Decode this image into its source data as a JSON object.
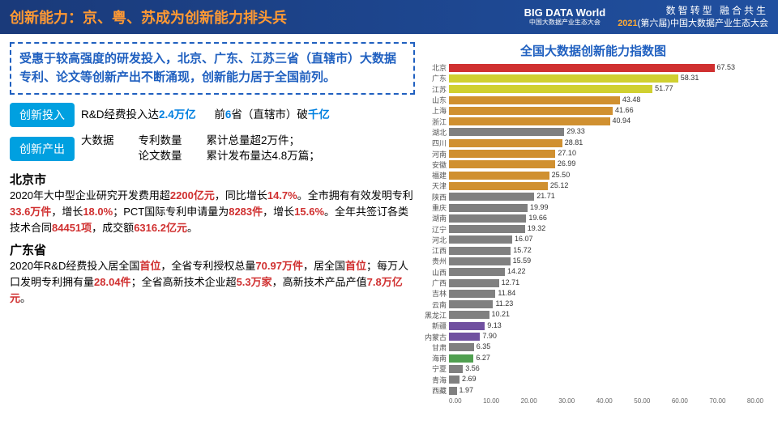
{
  "header": {
    "title": "创新能力：京、粤、苏成为创新能力排头兵",
    "logo_big": "BIG DATA World",
    "logo_small": "中国大数据产业生态大会",
    "tagline1": "数智转型 融合共生",
    "tagline2_year": "2021",
    "tagline2_rest": "(第六届)中国大数据产业生态大会"
  },
  "summary": "受惠于较高强度的研发投入，北京、广东、江苏三省（直辖市）大数据专利、论文等创新产出不断涌现，创新能力居于全国前列。",
  "badge1": "创新投入",
  "row1_p1": "R&D经费投入达",
  "row1_v1": "2.4万亿",
  "row1_p2": "前",
  "row1_v2": "6",
  "row1_p3": "省（直辖市）破",
  "row1_v3": "千亿",
  "badge2": "创新产出",
  "row2_label": "大数据",
  "row2_a": "专利数量",
  "row2_b": "论文数量",
  "row2_c": "累计总量超2万件；",
  "row2_d": "累计发布量达4.8万篇；",
  "bj_title": "北京市",
  "bj": {
    "p1": "2020年大中型企业研究开发费用超",
    "v1": "2200亿元",
    "p2": "，同比增长",
    "v2": "14.7%",
    "p3": "。全市拥有有效发明专利",
    "v3": "33.6万件",
    "p4": "，增长",
    "v4": "18.0%",
    "p5": "；PCT国际专利申请量为",
    "v5": "8283件",
    "p6": "，增长",
    "v6": "15.6%",
    "p7": "。全年共签订各类技术合同",
    "v7": "84451项",
    "p8": "，成交额",
    "v8": "6316.2亿元",
    "p9": "。"
  },
  "gd_title": "广东省",
  "gd": {
    "p1": "2020年R&D经费投入居全国",
    "v1": "首位",
    "p2": "，全省专利授权总量",
    "v2": "70.97万件",
    "p3": "，居全国",
    "v3": "首位",
    "p4": "；每万人口发明专利拥有量",
    "v4": "28.04件",
    "p5": "；全省高新技术企业超",
    "v5": "5.3万家",
    "p6": "，高新技术产品产值",
    "v6": "7.8万亿元",
    "p7": "。"
  },
  "chart": {
    "title": "全国大数据创新能力指数图",
    "max": 80,
    "xticks": [
      "0.00",
      "10.00",
      "20.00",
      "30.00",
      "40.00",
      "50.00",
      "60.00",
      "70.00",
      "80.00"
    ],
    "bars": [
      {
        "label": "北京",
        "value": 67.53,
        "color": "#d03030"
      },
      {
        "label": "广东",
        "value": 58.31,
        "color": "#d0d030"
      },
      {
        "label": "江苏",
        "value": 51.77,
        "color": "#d0d030"
      },
      {
        "label": "山东",
        "value": 43.48,
        "color": "#d09030"
      },
      {
        "label": "上海",
        "value": 41.66,
        "color": "#d09030"
      },
      {
        "label": "浙江",
        "value": 40.94,
        "color": "#d09030"
      },
      {
        "label": "湖北",
        "value": 29.33,
        "color": "#808080"
      },
      {
        "label": "四川",
        "value": 28.81,
        "color": "#d09030"
      },
      {
        "label": "河南",
        "value": 27.1,
        "color": "#d09030"
      },
      {
        "label": "安徽",
        "value": 26.99,
        "color": "#d09030"
      },
      {
        "label": "福建",
        "value": 25.5,
        "color": "#d09030"
      },
      {
        "label": "天津",
        "value": 25.12,
        "color": "#d09030"
      },
      {
        "label": "陕西",
        "value": 21.71,
        "color": "#808080"
      },
      {
        "label": "重庆",
        "value": 19.99,
        "color": "#808080"
      },
      {
        "label": "湖南",
        "value": 19.66,
        "color": "#808080"
      },
      {
        "label": "辽宁",
        "value": 19.32,
        "color": "#808080"
      },
      {
        "label": "河北",
        "value": 16.07,
        "color": "#808080"
      },
      {
        "label": "江西",
        "value": 15.72,
        "color": "#808080"
      },
      {
        "label": "贵州",
        "value": 15.59,
        "color": "#808080"
      },
      {
        "label": "山西",
        "value": 14.22,
        "color": "#808080"
      },
      {
        "label": "广西",
        "value": 12.71,
        "color": "#808080"
      },
      {
        "label": "吉林",
        "value": 11.84,
        "color": "#808080"
      },
      {
        "label": "云南",
        "value": 11.23,
        "color": "#808080"
      },
      {
        "label": "黑龙江",
        "value": 10.21,
        "color": "#808080"
      },
      {
        "label": "新疆",
        "value": 9.13,
        "color": "#7050a0"
      },
      {
        "label": "内蒙古",
        "value": 7.9,
        "color": "#7050a0"
      },
      {
        "label": "甘肃",
        "value": 6.35,
        "color": "#808080"
      },
      {
        "label": "海南",
        "value": 6.27,
        "color": "#50a050"
      },
      {
        "label": "宁夏",
        "value": 3.56,
        "color": "#808080"
      },
      {
        "label": "青海",
        "value": 2.69,
        "color": "#808080"
      },
      {
        "label": "西藏",
        "value": 1.97,
        "color": "#808080"
      }
    ]
  }
}
